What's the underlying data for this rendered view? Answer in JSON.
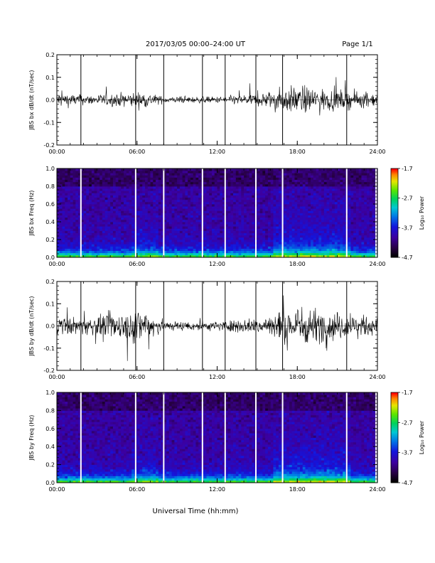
{
  "header": {
    "title": "2017/03/05  00:00–24:00 UT",
    "page": "Page 1/1"
  },
  "xaxis_label": "Universal Time (hh:mm)",
  "colorbar": {
    "label": "Log₁₀ Power",
    "ticks": [
      "-1.7",
      "-2.7",
      "-3.7",
      "-4.7"
    ]
  },
  "chart_data": [
    {
      "type": "line",
      "ylabel": "JBS bx dB/dt (nT/sec)",
      "xlim": [
        0,
        24
      ],
      "ylim": [
        -0.2,
        0.2
      ],
      "xticks": [
        "00:00",
        "06:00",
        "12:00",
        "18:00",
        "24:00"
      ],
      "yticks": [
        "0.2",
        "0.1",
        "0.0",
        "-0.1",
        "-0.2"
      ],
      "spike_hours": [
        1.8,
        5.9,
        8.0,
        10.9,
        12.6,
        14.9,
        16.9,
        21.7
      ],
      "amplitude_envelope": [
        {
          "h": 0,
          "a": 0.05
        },
        {
          "h": 2,
          "a": 0.03
        },
        {
          "h": 6.5,
          "a": 0.05
        },
        {
          "h": 8,
          "a": 0.02
        },
        {
          "h": 12,
          "a": 0.02
        },
        {
          "h": 15,
          "a": 0.04
        },
        {
          "h": 18,
          "a": 0.09
        },
        {
          "h": 20,
          "a": 0.07
        },
        {
          "h": 24,
          "a": 0.04
        }
      ]
    },
    {
      "type": "heatmap",
      "ylabel": "JBS bx Freq (Hz)",
      "xlim": [
        0,
        24
      ],
      "ylim": [
        0,
        1.0
      ],
      "xticks": [
        "00:00",
        "06:00",
        "12:00",
        "18:00",
        "24:00"
      ],
      "yticks": [
        "1.0",
        "0.8",
        "0.6",
        "0.4",
        "0.2",
        "0.0"
      ],
      "zlim": [
        -4.7,
        -1.7
      ],
      "gap_hours": [
        1.8,
        5.9,
        8.0,
        10.9,
        12.6,
        14.9,
        16.9,
        21.7,
        23.9
      ]
    },
    {
      "type": "line",
      "ylabel": "JBS by dB/dt (nT/sec)",
      "xlim": [
        0,
        24
      ],
      "ylim": [
        -0.2,
        0.2
      ],
      "xticks": [
        "00:00",
        "06:00",
        "12:00",
        "18:00",
        "24:00"
      ],
      "yticks": [
        "0.2",
        "0.1",
        "0.0",
        "-0.1",
        "-0.2"
      ],
      "spike_hours": [
        1.8,
        5.9,
        8.0,
        10.9,
        12.6,
        14.9,
        16.9,
        21.7
      ],
      "amplitude_envelope": [
        {
          "h": 0,
          "a": 0.06
        },
        {
          "h": 2,
          "a": 0.05
        },
        {
          "h": 6.8,
          "a": 0.12
        },
        {
          "h": 8,
          "a": 0.03
        },
        {
          "h": 12,
          "a": 0.03
        },
        {
          "h": 15,
          "a": 0.05
        },
        {
          "h": 18,
          "a": 0.13
        },
        {
          "h": 20,
          "a": 0.1
        },
        {
          "h": 24,
          "a": 0.05
        }
      ]
    },
    {
      "type": "heatmap",
      "ylabel": "JBS by Freq (Hz)",
      "xlim": [
        0,
        24
      ],
      "ylim": [
        0,
        1.0
      ],
      "xticks": [
        "00:00",
        "06:00",
        "12:00",
        "18:00",
        "24:00"
      ],
      "yticks": [
        "1.0",
        "0.8",
        "0.6",
        "0.4",
        "0.2",
        "0.0"
      ],
      "zlim": [
        -4.7,
        -1.7
      ],
      "gap_hours": [
        1.8,
        5.9,
        8.0,
        10.9,
        12.6,
        14.9,
        16.9,
        21.7,
        23.9
      ]
    }
  ]
}
